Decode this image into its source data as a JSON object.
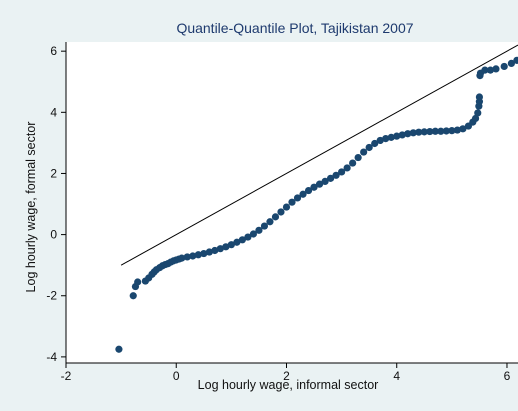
{
  "chart_data": {
    "type": "scatter",
    "title": "Quantile-Quantile Plot, Tajikistan 2007",
    "xlabel": "Log hourly wage, informal sector",
    "ylabel": "Log hourly wage, formal sector",
    "xlim": [
      -2,
      6.2
    ],
    "ylim": [
      -4.2,
      6.3
    ],
    "xticks": [
      -2,
      0,
      2,
      4,
      6
    ],
    "yticks": [
      -4,
      -2,
      0,
      2,
      4,
      6
    ],
    "grid": false,
    "legend": "none",
    "reference_line": {
      "from": [
        -1,
        -1
      ],
      "to": [
        6.2,
        6.2
      ]
    },
    "series": [
      {
        "marker_color": "#1a476f",
        "points": [
          [
            -1.04,
            -3.75
          ],
          [
            -0.78,
            -2.0
          ],
          [
            -0.74,
            -1.7
          ],
          [
            -0.7,
            -1.55
          ],
          [
            -0.56,
            -1.52
          ],
          [
            -0.5,
            -1.42
          ],
          [
            -0.44,
            -1.3
          ],
          [
            -0.4,
            -1.22
          ],
          [
            -0.36,
            -1.15
          ],
          [
            -0.3,
            -1.08
          ],
          [
            -0.25,
            -1.02
          ],
          [
            -0.2,
            -0.98
          ],
          [
            -0.15,
            -0.95
          ],
          [
            -0.1,
            -0.9
          ],
          [
            -0.05,
            -0.86
          ],
          [
            0.0,
            -0.83
          ],
          [
            0.05,
            -0.8
          ],
          [
            0.1,
            -0.77
          ],
          [
            0.2,
            -0.73
          ],
          [
            0.3,
            -0.7
          ],
          [
            0.4,
            -0.66
          ],
          [
            0.5,
            -0.62
          ],
          [
            0.6,
            -0.57
          ],
          [
            0.7,
            -0.52
          ],
          [
            0.8,
            -0.46
          ],
          [
            0.9,
            -0.4
          ],
          [
            1.0,
            -0.33
          ],
          [
            1.1,
            -0.25
          ],
          [
            1.2,
            -0.17
          ],
          [
            1.3,
            -0.08
          ],
          [
            1.4,
            0.02
          ],
          [
            1.5,
            0.14
          ],
          [
            1.6,
            0.28
          ],
          [
            1.7,
            0.42
          ],
          [
            1.8,
            0.58
          ],
          [
            1.9,
            0.74
          ],
          [
            2.0,
            0.9
          ],
          [
            2.1,
            1.06
          ],
          [
            2.2,
            1.2
          ],
          [
            2.3,
            1.32
          ],
          [
            2.4,
            1.44
          ],
          [
            2.5,
            1.55
          ],
          [
            2.6,
            1.65
          ],
          [
            2.7,
            1.74
          ],
          [
            2.8,
            1.84
          ],
          [
            2.9,
            1.94
          ],
          [
            3.0,
            2.05
          ],
          [
            3.1,
            2.18
          ],
          [
            3.2,
            2.34
          ],
          [
            3.3,
            2.52
          ],
          [
            3.4,
            2.7
          ],
          [
            3.5,
            2.85
          ],
          [
            3.6,
            2.98
          ],
          [
            3.7,
            3.08
          ],
          [
            3.8,
            3.14
          ],
          [
            3.9,
            3.18
          ],
          [
            4.0,
            3.22
          ],
          [
            4.1,
            3.26
          ],
          [
            4.2,
            3.3
          ],
          [
            4.3,
            3.33
          ],
          [
            4.4,
            3.35
          ],
          [
            4.5,
            3.36
          ],
          [
            4.6,
            3.37
          ],
          [
            4.7,
            3.38
          ],
          [
            4.8,
            3.38
          ],
          [
            4.9,
            3.39
          ],
          [
            5.0,
            3.4
          ],
          [
            5.1,
            3.42
          ],
          [
            5.2,
            3.46
          ],
          [
            5.3,
            3.55
          ],
          [
            5.38,
            3.68
          ],
          [
            5.43,
            3.8
          ],
          [
            5.47,
            3.98
          ],
          [
            5.49,
            4.2
          ],
          [
            5.5,
            4.35
          ],
          [
            5.5,
            4.5
          ],
          [
            5.51,
            5.2
          ],
          [
            5.52,
            5.28
          ],
          [
            5.6,
            5.38
          ],
          [
            5.7,
            5.38
          ],
          [
            5.8,
            5.42
          ],
          [
            5.95,
            5.5
          ],
          [
            6.08,
            5.6
          ],
          [
            6.18,
            5.7
          ]
        ]
      }
    ]
  }
}
